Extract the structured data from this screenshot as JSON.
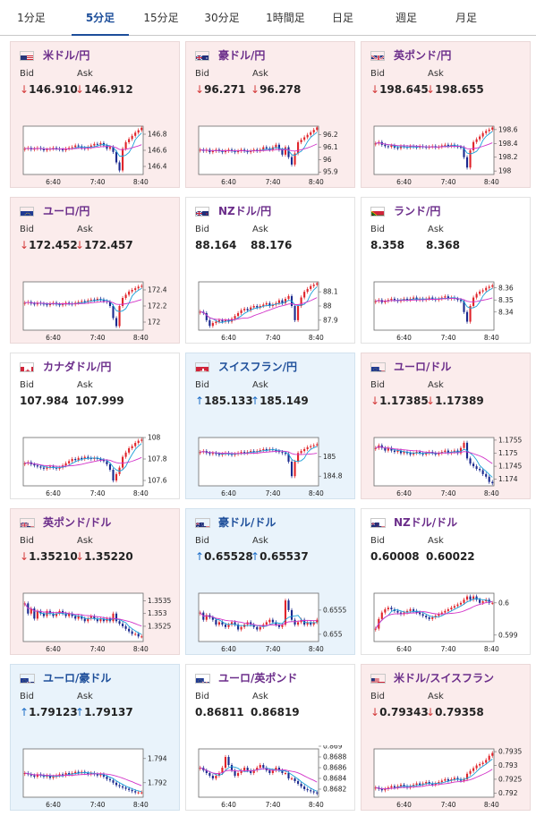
{
  "tabs": [
    {
      "label": "1分足",
      "active": false
    },
    {
      "label": "5分足",
      "active": true
    },
    {
      "label": "15分足",
      "active": false
    },
    {
      "label": "30分足",
      "active": false
    },
    {
      "label": "1時間足",
      "active": false
    },
    {
      "label": "日足",
      "active": false
    },
    {
      "label": "週足",
      "active": false
    },
    {
      "label": "月足",
      "active": false
    }
  ],
  "labels": {
    "bid": "Bid",
    "ask": "Ask"
  },
  "arrows": {
    "down": "↓",
    "up": "↑"
  },
  "x_ticks": [
    "6:40",
    "7:40",
    "8:40"
  ],
  "colors": {
    "down_card": "#fbecec",
    "up_card": "#e9f3fb",
    "flat_card": "#ffffff",
    "down_arrow": "#d43a3a",
    "up_arrow": "#1b6cc7",
    "candle_up": "#e0242a",
    "candle_down": "#1b2a8f",
    "ma_short": "#1aa0d8",
    "ma_long": "#d233c8"
  },
  "cards": [
    {
      "pair": "米ドル/円",
      "flag": "us-flag",
      "flag2": "",
      "trend": "down",
      "bid": "146.910",
      "ask": "146.912",
      "chart_data": {
        "type": "candlestick",
        "ylim": [
          146.3,
          146.9
        ],
        "y_ticks": [
          "146.8",
          "146.6",
          "146.4"
        ],
        "y_tick_values": [
          146.8,
          146.6,
          146.4
        ],
        "close": [
          146.62,
          146.63,
          146.61,
          146.62,
          146.63,
          146.62,
          146.6,
          146.61,
          146.62,
          146.63,
          146.62,
          146.61,
          146.6,
          146.62,
          146.63,
          146.64,
          146.66,
          146.65,
          146.63,
          146.62,
          146.64,
          146.66,
          146.68,
          146.67,
          146.69,
          146.66,
          146.62,
          146.64,
          146.58,
          146.45,
          146.35,
          146.62,
          146.7,
          146.74,
          146.78,
          146.82,
          146.85,
          146.88
        ]
      }
    },
    {
      "pair": "豪ドル/円",
      "flag": "au-flag",
      "flag2": "",
      "trend": "down",
      "bid": "96.271",
      "ask": "96.278",
      "chart_data": {
        "type": "candlestick",
        "ylim": [
          95.88,
          96.27
        ],
        "y_ticks": [
          "96.2",
          "96.1",
          "96",
          "95.9"
        ],
        "y_tick_values": [
          96.2,
          96.1,
          96.0,
          95.9
        ],
        "close": [
          96.08,
          96.07,
          96.08,
          96.06,
          96.07,
          96.08,
          96.07,
          96.06,
          96.07,
          96.08,
          96.07,
          96.06,
          96.07,
          96.08,
          96.07,
          96.06,
          96.07,
          96.08,
          96.07,
          96.08,
          96.1,
          96.09,
          96.08,
          96.1,
          96.12,
          96.08,
          96.04,
          96.1,
          96.02,
          95.96,
          96.05,
          96.14,
          96.16,
          96.18,
          96.2,
          96.22,
          96.24,
          96.26
        ]
      }
    },
    {
      "pair": "英ポンド/円",
      "flag": "uk-flag",
      "flag2": "",
      "trend": "down",
      "bid": "198.645",
      "ask": "198.655",
      "chart_data": {
        "type": "candlestick",
        "ylim": [
          197.95,
          198.65
        ],
        "y_ticks": [
          "198.6",
          "198.4",
          "198.2",
          "198"
        ],
        "y_tick_values": [
          198.6,
          198.4,
          198.2,
          198.0
        ],
        "close": [
          198.4,
          198.42,
          198.38,
          198.36,
          198.35,
          198.37,
          198.34,
          198.33,
          198.36,
          198.35,
          198.34,
          198.36,
          198.35,
          198.34,
          198.36,
          198.35,
          198.34,
          198.35,
          198.36,
          198.34,
          198.35,
          198.37,
          198.38,
          198.36,
          198.38,
          198.36,
          198.35,
          198.34,
          198.2,
          198.05,
          198.3,
          198.42,
          198.46,
          198.5,
          198.55,
          198.58,
          198.6,
          198.63
        ]
      }
    },
    {
      "pair": "ユーロ/円",
      "flag": "eu-flag",
      "flag2": "",
      "trend": "down",
      "bid": "172.452",
      "ask": "172.457",
      "chart_data": {
        "type": "candlestick",
        "ylim": [
          171.9,
          172.5
        ],
        "y_ticks": [
          "172.4",
          "172.2",
          "172"
        ],
        "y_tick_values": [
          172.4,
          172.2,
          172.0
        ],
        "close": [
          172.24,
          172.25,
          172.23,
          172.22,
          172.24,
          172.23,
          172.22,
          172.21,
          172.23,
          172.24,
          172.22,
          172.21,
          172.22,
          172.24,
          172.23,
          172.22,
          172.24,
          172.25,
          172.26,
          172.25,
          172.27,
          172.28,
          172.27,
          172.29,
          172.28,
          172.26,
          172.25,
          172.2,
          172.05,
          171.95,
          172.2,
          172.3,
          172.34,
          172.38,
          172.4,
          172.42,
          172.44,
          172.45
        ]
      }
    },
    {
      "pair": "NZドル/円",
      "flag": "nz-flag",
      "flag2": "",
      "trend": "flat",
      "bid": "88.164",
      "ask": "88.176",
      "chart_data": {
        "type": "candlestick",
        "ylim": [
          87.83,
          88.17
        ],
        "y_ticks": [
          "88.1",
          "88",
          "87.9"
        ],
        "y_tick_values": [
          88.1,
          88.0,
          87.9
        ],
        "close": [
          87.96,
          87.95,
          87.9,
          87.86,
          87.88,
          87.89,
          87.9,
          87.89,
          87.9,
          87.89,
          87.91,
          87.93,
          87.95,
          87.97,
          87.98,
          87.97,
          87.99,
          88.0,
          87.99,
          88.0,
          88.01,
          88.02,
          88.0,
          88.01,
          88.02,
          88.04,
          88.02,
          88.05,
          88.07,
          88.0,
          87.9,
          88.0,
          88.06,
          88.1,
          88.12,
          88.14,
          88.15,
          88.16
        ]
      }
    },
    {
      "pair": "ランド/円",
      "flag": "za-flag",
      "flag2": "",
      "trend": "flat",
      "bid": "8.358",
      "ask": "8.368",
      "chart_data": {
        "type": "candlestick",
        "ylim": [
          8.325,
          8.365
        ],
        "y_ticks": [
          "8.36",
          "8.35",
          "8.34"
        ],
        "y_tick_values": [
          8.36,
          8.35,
          8.34
        ],
        "close": [
          8.349,
          8.35,
          8.348,
          8.349,
          8.35,
          8.351,
          8.35,
          8.349,
          8.35,
          8.351,
          8.35,
          8.351,
          8.352,
          8.35,
          8.351,
          8.35,
          8.351,
          8.352,
          8.351,
          8.35,
          8.351,
          8.352,
          8.353,
          8.351,
          8.352,
          8.351,
          8.35,
          8.349,
          8.34,
          8.332,
          8.345,
          8.352,
          8.355,
          8.357,
          8.358,
          8.36,
          8.361,
          8.362
        ]
      }
    },
    {
      "pair": "カナダドル/円",
      "flag": "ca-flag",
      "flag2": "",
      "trend": "flat",
      "bid": "107.984",
      "ask": "107.999",
      "chart_data": {
        "type": "candlestick",
        "ylim": [
          107.55,
          108.0
        ],
        "y_ticks": [
          "108",
          "107.8",
          "107.6"
        ],
        "y_tick_values": [
          108.0,
          107.8,
          107.6
        ],
        "close": [
          107.76,
          107.77,
          107.75,
          107.74,
          107.73,
          107.72,
          107.71,
          107.72,
          107.73,
          107.72,
          107.71,
          107.72,
          107.74,
          107.76,
          107.78,
          107.8,
          107.79,
          107.81,
          107.8,
          107.82,
          107.81,
          107.8,
          107.81,
          107.8,
          107.79,
          107.78,
          107.75,
          107.7,
          107.6,
          107.66,
          107.72,
          107.82,
          107.86,
          107.9,
          107.92,
          107.95,
          107.97,
          107.98
        ]
      }
    },
    {
      "pair": "スイスフラン/円",
      "flag": "ch-flag",
      "flag2": "",
      "trend": "up",
      "bid": "185.133",
      "ask": "185.149",
      "chart_data": {
        "type": "candlestick",
        "ylim": [
          184.7,
          185.2
        ],
        "y_ticks": [
          "185",
          "184.8"
        ],
        "y_tick_values": [
          185.0,
          184.8
        ],
        "close": [
          185.05,
          185.06,
          185.04,
          185.03,
          185.04,
          185.03,
          185.02,
          185.03,
          185.04,
          185.03,
          185.02,
          185.03,
          185.04,
          185.05,
          185.04,
          185.05,
          185.06,
          185.05,
          185.06,
          185.07,
          185.08,
          185.07,
          185.08,
          185.07,
          185.06,
          185.05,
          185.04,
          185.03,
          184.95,
          184.8,
          184.95,
          185.04,
          185.06,
          185.08,
          185.1,
          185.11,
          185.12,
          185.13
        ]
      }
    },
    {
      "pair": "ユーロ/ドル",
      "flag": "eu-flag",
      "flag2": "us-flag",
      "trend": "down",
      "bid": "1.17385",
      "ask": "1.17389",
      "chart_data": {
        "type": "candlestick",
        "ylim": [
          1.17375,
          1.1756
        ],
        "y_ticks": [
          "1.1755",
          "1.175",
          "1.1745",
          "1.174"
        ],
        "y_tick_values": [
          1.1755,
          1.175,
          1.1745,
          1.174
        ],
        "close": [
          1.1752,
          1.1753,
          1.1752,
          1.1751,
          1.1752,
          1.1751,
          1.17505,
          1.1751,
          1.175,
          1.17505,
          1.175,
          1.17495,
          1.175,
          1.17505,
          1.175,
          1.17495,
          1.175,
          1.17505,
          1.175,
          1.17495,
          1.175,
          1.17505,
          1.1751,
          1.175,
          1.17505,
          1.1751,
          1.175,
          1.1752,
          1.1754,
          1.1748,
          1.1746,
          1.1745,
          1.1744,
          1.17435,
          1.1742,
          1.1741,
          1.1739,
          1.17385
        ]
      }
    },
    {
      "pair": "英ポンド/ドル",
      "flag": "uk-flag",
      "flag2": "us-flag",
      "trend": "down",
      "bid": "1.35210",
      "ask": "1.35220",
      "chart_data": {
        "type": "candlestick",
        "ylim": [
          1.3519,
          1.3538
        ],
        "y_ticks": [
          "1.3535",
          "1.353",
          "1.3525"
        ],
        "y_tick_values": [
          1.3535,
          1.353,
          1.3525
        ],
        "close": [
          1.3534,
          1.353,
          1.3532,
          1.3528,
          1.3531,
          1.353,
          1.3529,
          1.3531,
          1.353,
          1.3529,
          1.353,
          1.3531,
          1.353,
          1.3529,
          1.353,
          1.3529,
          1.3528,
          1.3529,
          1.3528,
          1.3527,
          1.3528,
          1.3529,
          1.3528,
          1.3527,
          1.3528,
          1.3527,
          1.3528,
          1.3527,
          1.353,
          1.3527,
          1.3526,
          1.3525,
          1.3524,
          1.3523,
          1.3522,
          1.3522,
          1.3521,
          1.3521
        ]
      }
    },
    {
      "pair": "豪ドル/ドル",
      "flag": "au-flag",
      "flag2": "us-flag",
      "trend": "up",
      "bid": "0.65528",
      "ask": "0.65537",
      "chart_data": {
        "type": "candlestick",
        "ylim": [
          0.65485,
          0.65585
        ],
        "y_ticks": [
          "0.6555",
          "0.655"
        ],
        "y_tick_values": [
          0.6555,
          0.655
        ],
        "close": [
          0.65545,
          0.6553,
          0.6554,
          0.65535,
          0.6553,
          0.6552,
          0.65525,
          0.6552,
          0.65515,
          0.6552,
          0.65525,
          0.6552,
          0.6551,
          0.65515,
          0.6552,
          0.65525,
          0.6552,
          0.65515,
          0.6551,
          0.65515,
          0.6552,
          0.65525,
          0.6553,
          0.65525,
          0.6552,
          0.65515,
          0.6552,
          0.6557,
          0.6555,
          0.6553,
          0.6552,
          0.65525,
          0.6553,
          0.6552,
          0.65525,
          0.6552,
          0.65525,
          0.6553
        ]
      }
    },
    {
      "pair": "NZドル/ドル",
      "flag": "nz-flag",
      "flag2": "us-flag",
      "trend": "flat",
      "bid": "0.60008",
      "ask": "0.60022",
      "chart_data": {
        "type": "candlestick",
        "ylim": [
          0.5988,
          0.6003
        ],
        "y_ticks": [
          "0.6",
          "0.599"
        ],
        "y_tick_values": [
          0.6,
          0.599
        ],
        "close": [
          0.5992,
          0.5995,
          0.5997,
          0.5998,
          0.59985,
          0.5998,
          0.59975,
          0.5997,
          0.59965,
          0.5997,
          0.59975,
          0.5998,
          0.59975,
          0.5997,
          0.59965,
          0.5996,
          0.59955,
          0.5995,
          0.59955,
          0.5996,
          0.59965,
          0.5997,
          0.59975,
          0.5998,
          0.59985,
          0.5999,
          0.59995,
          0.6,
          0.6001,
          0.6002,
          0.6001,
          0.6002,
          0.6001,
          0.6,
          0.60005,
          0.6001,
          0.6,
          0.6
        ]
      }
    },
    {
      "pair": "ユーロ/豪ドル",
      "flag": "eu-flag",
      "flag2": "au-flag",
      "trend": "up",
      "bid": "1.79123",
      "ask": "1.79137",
      "chart_data": {
        "type": "candlestick",
        "ylim": [
          1.7908,
          1.7948
        ],
        "y_ticks": [
          "1.794",
          "1.792"
        ],
        "y_tick_values": [
          1.794,
          1.792
        ],
        "close": [
          1.7928,
          1.7927,
          1.7926,
          1.7925,
          1.7927,
          1.7926,
          1.7925,
          1.7926,
          1.7924,
          1.7925,
          1.7926,
          1.7927,
          1.7926,
          1.7928,
          1.7927,
          1.7928,
          1.7929,
          1.7928,
          1.7929,
          1.7928,
          1.7927,
          1.7928,
          1.7927,
          1.7926,
          1.7927,
          1.7925,
          1.7923,
          1.7922,
          1.792,
          1.7918,
          1.7917,
          1.7916,
          1.7915,
          1.7914,
          1.7913,
          1.7912,
          1.7912,
          1.7912
        ]
      }
    },
    {
      "pair": "ユーロ/英ポンド",
      "flag": "eu-flag",
      "flag2": "uk-flag",
      "trend": "flat",
      "bid": "0.86811",
      "ask": "0.86819",
      "chart_data": {
        "type": "candlestick",
        "ylim": [
          0.86805,
          0.86895
        ],
        "y_ticks": [
          "0.869",
          "0.8688",
          "0.8686",
          "0.8684",
          "0.8682"
        ],
        "y_tick_values": [
          0.869,
          0.8688,
          0.8686,
          0.8684,
          0.8682
        ],
        "close": [
          0.8686,
          0.86855,
          0.8685,
          0.86845,
          0.8684,
          0.86845,
          0.8685,
          0.8686,
          0.8688,
          0.86865,
          0.86855,
          0.86845,
          0.8685,
          0.86855,
          0.8686,
          0.86855,
          0.8685,
          0.86855,
          0.8686,
          0.86865,
          0.8686,
          0.86855,
          0.8685,
          0.86855,
          0.8686,
          0.86855,
          0.8685,
          0.8685,
          0.8684,
          0.8684,
          0.86835,
          0.8683,
          0.86825,
          0.8682,
          0.86818,
          0.86816,
          0.86814,
          0.86812
        ]
      }
    },
    {
      "pair": "米ドル/スイスフラン",
      "flag": "us-flag",
      "flag2": "ch-flag",
      "trend": "down",
      "bid": "0.79343",
      "ask": "0.79358",
      "chart_data": {
        "type": "candlestick",
        "ylim": [
          0.79185,
          0.7936
        ],
        "y_ticks": [
          "0.7935",
          "0.793",
          "0.7925",
          "0.792"
        ],
        "y_tick_values": [
          0.7935,
          0.793,
          0.7925,
          0.792
        ],
        "close": [
          0.7922,
          0.79215,
          0.7921,
          0.79215,
          0.7922,
          0.79225,
          0.7922,
          0.79225,
          0.7923,
          0.79225,
          0.7922,
          0.79225,
          0.7923,
          0.79235,
          0.7923,
          0.79235,
          0.7924,
          0.79235,
          0.7923,
          0.79235,
          0.7924,
          0.79245,
          0.7925,
          0.79245,
          0.7925,
          0.79255,
          0.7925,
          0.79245,
          0.7925,
          0.7927,
          0.7928,
          0.7929,
          0.793,
          0.79305,
          0.7931,
          0.7932,
          0.79335,
          0.79345
        ]
      }
    }
  ]
}
